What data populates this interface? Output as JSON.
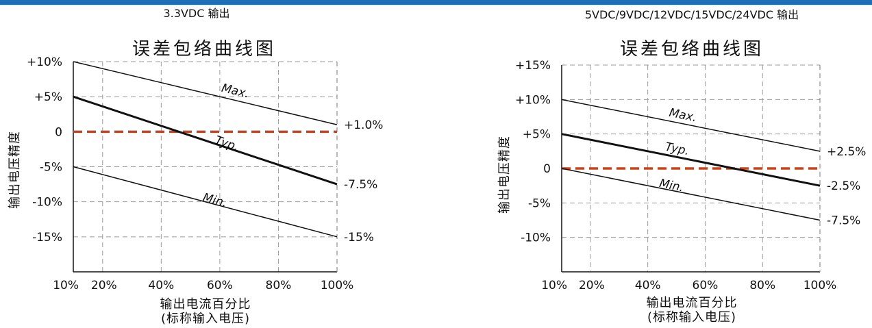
{
  "chart_data": [
    {
      "type": "line",
      "header": "3.3VDC 输出",
      "title": "误差包络曲线图",
      "xlabel": "输出电流百分比",
      "xlabel_sub": "(标称输入电压)",
      "ylabel": "输出电压精度",
      "xlim": [
        10,
        100
      ],
      "ylim": [
        -20,
        10
      ],
      "x_ticks": [
        10,
        20,
        40,
        60,
        80,
        100
      ],
      "x_tick_labels": [
        "10%",
        "20%",
        "40%",
        "60%",
        "80%",
        "100%"
      ],
      "y_ticks": [
        10,
        5,
        0,
        -5,
        -10,
        -15
      ],
      "y_tick_labels": [
        "+10%",
        "+5%",
        "0",
        "-5%",
        "-10%",
        "-15%"
      ],
      "grid": true,
      "series": [
        {
          "name": "Max.",
          "x": [
            10,
            100
          ],
          "y": [
            10,
            1.0
          ],
          "end_label": "+1.0%",
          "label_at": [
            65,
            5.3
          ],
          "weight": "thin"
        },
        {
          "name": "Typ.",
          "x": [
            10,
            100
          ],
          "y": [
            5,
            -7.5
          ],
          "end_label": "-7.5%",
          "label_at": [
            62,
            -2.2
          ],
          "weight": "bold"
        },
        {
          "name": "Min.",
          "x": [
            10,
            100
          ],
          "y": [
            -5,
            -15
          ],
          "end_label": "-15%",
          "label_at": [
            58,
            -10.3
          ],
          "weight": "thin"
        }
      ],
      "reference_line": {
        "y": 0,
        "color": "#c9431a",
        "style": "dashed"
      },
      "colors": {
        "line": "#111111",
        "grid": "#9a9a9a"
      }
    },
    {
      "type": "line",
      "header": "5VDC/9VDC/12VDC/15VDC/24VDC 输出",
      "title": "误差包络曲线图",
      "xlabel": "输出电流百分比",
      "xlabel_sub": "(标称输入电压)",
      "ylabel": "输出电压精度",
      "xlim": [
        10,
        100
      ],
      "ylim": [
        -15,
        15
      ],
      "x_ticks": [
        10,
        20,
        40,
        60,
        80,
        100
      ],
      "x_tick_labels": [
        "10%",
        "20%",
        "40%",
        "60%",
        "80%",
        "100%"
      ],
      "y_ticks": [
        15,
        10,
        5,
        0,
        -5,
        -10
      ],
      "y_tick_labels": [
        "+15%",
        "+10%",
        "+5%",
        "0",
        "-5%",
        "-10%"
      ],
      "grid": true,
      "series": [
        {
          "name": "Max.",
          "x": [
            10,
            100
          ],
          "y": [
            10,
            2.5
          ],
          "end_label": "+2.5%",
          "label_at": [
            52,
            7.2
          ],
          "weight": "thin"
        },
        {
          "name": "Typ.",
          "x": [
            10,
            100
          ],
          "y": [
            5,
            -2.5
          ],
          "end_label": "-2.5%",
          "label_at": [
            50,
            2.3
          ],
          "weight": "bold"
        },
        {
          "name": "Min.",
          "x": [
            10,
            100
          ],
          "y": [
            0,
            -7.5
          ],
          "end_label": "-7.5%",
          "label_at": [
            48,
            -3.0
          ],
          "weight": "thin"
        }
      ],
      "reference_line": {
        "y": 0,
        "color": "#c9431a",
        "style": "dashed"
      },
      "colors": {
        "line": "#111111",
        "grid": "#9a9a9a"
      }
    }
  ]
}
